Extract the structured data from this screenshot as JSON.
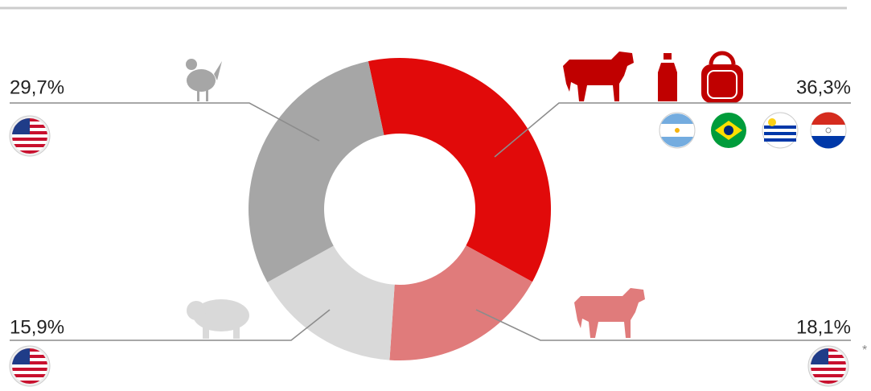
{
  "chart_data": {
    "type": "donut",
    "values": [
      36.3,
      18.1,
      15.9,
      29.7
    ],
    "value_labels": [
      "36,3%",
      "18,1%",
      "15,9%",
      "29,7%"
    ],
    "colors": [
      "#e10a0a",
      "#e07b7b",
      "#d9d9d9",
      "#a6a6a6"
    ],
    "footnote_marker": "*"
  }
}
